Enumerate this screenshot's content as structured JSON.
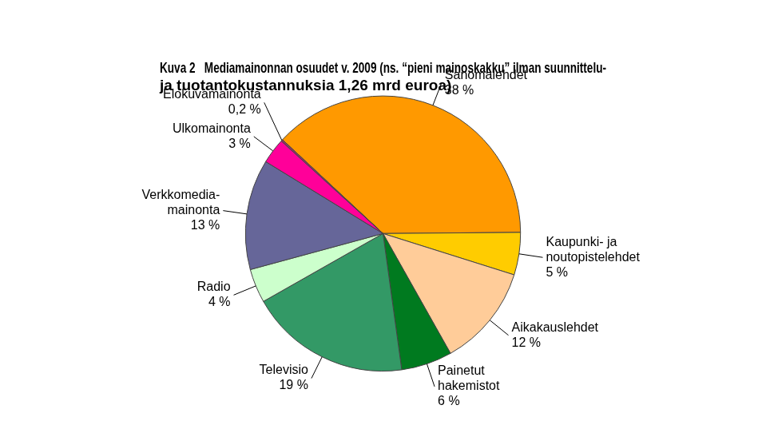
{
  "chart_data": {
    "type": "pie",
    "title": [
      "Kuva 2   Mediamainonnan osuudet v. 2009 (ns. “pieni mainoskakku” ilman suunnittelu-",
      "ja tuotantokustannuksia 1,26 mrd euroa)"
    ],
    "categories": [
      "Sanomalehdet",
      "Kaupunki- ja\nnoutopistelehdet",
      "Aikakauslehdet",
      "Painetut\nhakemistot",
      "Televisio",
      "Radio",
      "Verkkomedia-\nmainonta",
      "Ulkomainonta",
      "Elokuvamainonta"
    ],
    "values": [
      38,
      5,
      12,
      6,
      19,
      4,
      13,
      3,
      0.2
    ],
    "value_labels": [
      "38 %",
      "5 %",
      "12 %",
      "6 %",
      "19 %",
      "4 %",
      "13 %",
      "3 %",
      "0,2 %"
    ],
    "colors": [
      "#ff9900",
      "#ffcc00",
      "#ffcc99",
      "#007a1f",
      "#339966",
      "#ccffcc",
      "#666699",
      "#ff0099",
      "#993366"
    ],
    "data_labels": true
  }
}
